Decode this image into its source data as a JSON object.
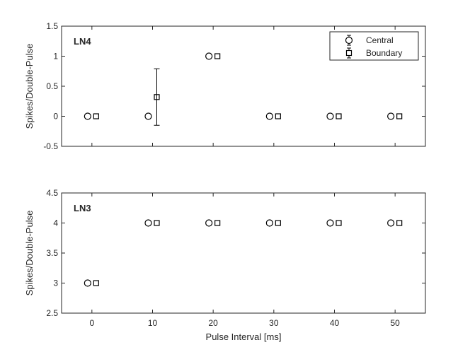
{
  "chart_data": [
    {
      "type": "scatter",
      "panel_title": "LN4",
      "xlabel": "",
      "ylabel": "Spikes/Double-Pulse",
      "xlim": [
        -5,
        55
      ],
      "ylim": [
        -0.5,
        1.5
      ],
      "xticks": [
        0,
        10,
        20,
        30,
        40,
        50
      ],
      "yticks": [
        -0.5,
        0,
        0.5,
        1,
        1.5
      ],
      "ytick_labels": [
        "-0.5",
        "0",
        "0.5",
        "1",
        "1.5"
      ],
      "show_xtick_labels": false,
      "grid": false,
      "legend": {
        "placement": "top-right",
        "entries": [
          "Central",
          "Boundary"
        ]
      },
      "series": [
        {
          "name": "Central",
          "marker": "circle",
          "x_offset": -0.7,
          "x": [
            0,
            10,
            20,
            30,
            40,
            50
          ],
          "y": [
            0,
            0,
            1,
            0,
            0,
            0
          ],
          "err": [
            0,
            0,
            0,
            0,
            0,
            0
          ]
        },
        {
          "name": "Boundary",
          "marker": "square",
          "x_offset": 0.7,
          "x": [
            0,
            10,
            20,
            30,
            40,
            50
          ],
          "y": [
            0,
            0.32,
            1,
            0,
            0,
            0
          ],
          "err": [
            0,
            0.47,
            0,
            0,
            0,
            0
          ]
        }
      ]
    },
    {
      "type": "scatter",
      "panel_title": "LN3",
      "xlabel": "Pulse Interval [ms]",
      "ylabel": "Spikes/Double-Pulse",
      "xlim": [
        -5,
        55
      ],
      "ylim": [
        2.5,
        4.5
      ],
      "xticks": [
        0,
        10,
        20,
        30,
        40,
        50
      ],
      "xtick_labels": [
        "0",
        "10",
        "20",
        "30",
        "40",
        "50"
      ],
      "yticks": [
        2.5,
        3,
        3.5,
        4,
        4.5
      ],
      "ytick_labels": [
        "2.5",
        "3",
        "3.5",
        "4",
        "4.5"
      ],
      "show_xtick_labels": true,
      "grid": false,
      "series": [
        {
          "name": "Central",
          "marker": "circle",
          "x_offset": -0.7,
          "x": [
            0,
            10,
            20,
            30,
            40,
            50
          ],
          "y": [
            3,
            4,
            4,
            4,
            4,
            4
          ],
          "err": [
            0,
            0,
            0,
            0,
            0,
            0
          ]
        },
        {
          "name": "Boundary",
          "marker": "square",
          "x_offset": 0.7,
          "x": [
            0,
            10,
            20,
            30,
            40,
            50
          ],
          "y": [
            3,
            4,
            4,
            4,
            4,
            4
          ],
          "err": [
            0,
            0,
            0,
            0,
            0,
            0
          ]
        }
      ]
    }
  ]
}
